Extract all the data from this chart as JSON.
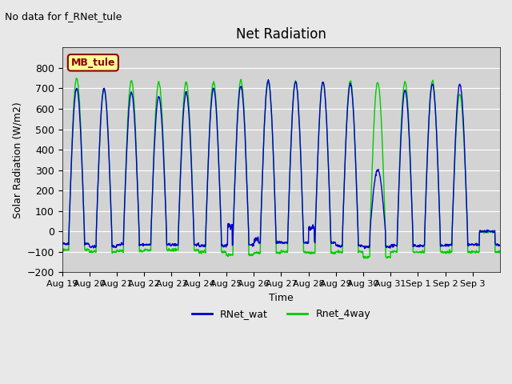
{
  "title": "Net Radiation",
  "top_left_text": "No data for f_RNet_tule",
  "ylabel": "Solar Radiation (W/m2)",
  "xlabel": "Time",
  "ylim": [
    -200,
    900
  ],
  "yticks": [
    -200,
    -100,
    0,
    100,
    200,
    300,
    400,
    500,
    600,
    700,
    800
  ],
  "x_tick_labels": [
    "Aug 19",
    "Aug 20",
    "Aug 21",
    "Aug 22",
    "Aug 23",
    "Aug 24",
    "Aug 25",
    "Aug 26",
    "Aug 27",
    "Aug 28",
    "Aug 29",
    "Aug 30",
    "Aug 31",
    "Sep 1",
    "Sep 2",
    "Sep 3"
  ],
  "legend_labels": [
    "RNet_wat",
    "Rnet_4way"
  ],
  "legend_colors": [
    "#0000cc",
    "#00cc00"
  ],
  "annotation_box_text": "MB_tule",
  "annotation_box_color": "#ffff99",
  "annotation_box_edge_color": "#8b0000",
  "bg_color": "#e8e8e8",
  "plot_bg_color": "#d3d3d3",
  "grid_color": "#ffffff",
  "num_days": 16,
  "peak_wat": [
    700,
    700,
    680,
    660,
    680,
    700,
    710,
    740,
    730,
    730,
    720,
    300,
    690,
    720,
    720,
    0
  ],
  "peak_4way": [
    750,
    690,
    740,
    730,
    730,
    730,
    740,
    730,
    735,
    730,
    735,
    730,
    730,
    735,
    670,
    0
  ],
  "night_wat": [
    -60,
    -75,
    -65,
    -65,
    -65,
    -70,
    -65,
    -55,
    -55,
    -55,
    -70,
    -75,
    -70,
    -70,
    -65,
    -65
  ],
  "night_4way": [
    -90,
    -100,
    -95,
    -90,
    -90,
    -100,
    -115,
    -105,
    -100,
    -105,
    -100,
    -125,
    -100,
    -100,
    -100,
    -100
  ]
}
